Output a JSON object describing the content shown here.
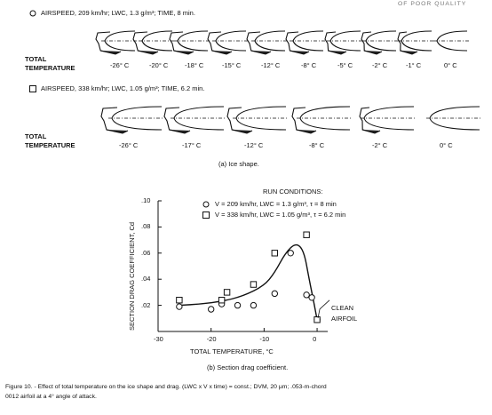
{
  "header_stamp": "OF POOR QUALITY",
  "section_a": {
    "row1": {
      "marker": "circle",
      "label": "AIRSPEED, 209 km/hr; LWC, 1.3 g/m³; TIME, 8 min.",
      "temp_label": [
        "TOTAL",
        "TEMPERATURE"
      ],
      "temps": [
        "-26° C",
        "-20° C",
        "-18° C",
        "-15° C",
        "-12° C",
        "-8° C",
        "-5° C",
        "-2° C",
        "-1° C",
        "0° C"
      ]
    },
    "row2": {
      "marker": "square",
      "label": "AIRSPEED, 338 km/hr; LWC, 1.05 g/m³; TIME, 6.2 min.",
      "temp_label": [
        "TOTAL",
        "TEMPERATURE"
      ],
      "temps": [
        "-26° C",
        "-17° C",
        "-12° C",
        "-8° C",
        "-2° C",
        "0° C"
      ]
    },
    "caption": "(a) Ice shape."
  },
  "chart_data": {
    "type": "scatter",
    "title": "RUN CONDITIONS:",
    "xlabel": "TOTAL TEMPERATURE, °C",
    "ylabel": "SECTION DRAG COEFFICIENT, Cd",
    "xlim": [
      -30,
      2
    ],
    "ylim": [
      0,
      0.1
    ],
    "xticks": [
      -30,
      -20,
      -10,
      0
    ],
    "xtick_labels": [
      "-30",
      "-20",
      "-10",
      "0"
    ],
    "yticks": [
      0.02,
      0.04,
      0.06,
      0.08,
      0.1
    ],
    "ytick_labels": [
      ".02",
      ".04",
      ".06",
      ".08",
      ".10"
    ],
    "series": [
      {
        "name": "V = 209 km/hr, LWC = 1.3 g/m³, τ = 8 min",
        "marker": "circle",
        "points": [
          [
            -26,
            0.019
          ],
          [
            -20,
            0.017
          ],
          [
            -18,
            0.021
          ],
          [
            -15,
            0.02
          ],
          [
            -12,
            0.02
          ],
          [
            -8,
            0.029
          ],
          [
            -5,
            0.06
          ],
          [
            -2,
            0.028
          ],
          [
            -1,
            0.026
          ],
          [
            0,
            0.009
          ]
        ]
      },
      {
        "name": "V = 338 km/hr, LWC = 1.05 g/m³, τ = 6.2 min",
        "marker": "square",
        "points": [
          [
            -26,
            0.024
          ],
          [
            -17,
            0.03
          ],
          [
            -18,
            0.024
          ],
          [
            -12,
            0.036
          ],
          [
            -8,
            0.06
          ],
          [
            -2,
            0.074
          ],
          [
            0,
            0.009
          ]
        ]
      }
    ],
    "curve": [
      [
        -26,
        0.02
      ],
      [
        -22,
        0.021
      ],
      [
        -18,
        0.023
      ],
      [
        -14,
        0.027
      ],
      [
        -10,
        0.035
      ],
      [
        -8,
        0.045
      ],
      [
        -6,
        0.06
      ],
      [
        -4,
        0.068
      ],
      [
        -2.5,
        0.062
      ],
      [
        -1.5,
        0.04
      ],
      [
        -0.6,
        0.022
      ],
      [
        0,
        0.009
      ]
    ],
    "annotation": [
      "CLEAN",
      "AIRFOIL"
    ],
    "caption": "(b) Section drag coefficient."
  },
  "figure_caption": [
    "Figure 10. - Effect of total temperature on the ice shape and drag.  (LWC x V x time) = const.; DVM, 20 μm; .053-m-chord",
    "0012 airfoil at a 4° angle of attack."
  ]
}
